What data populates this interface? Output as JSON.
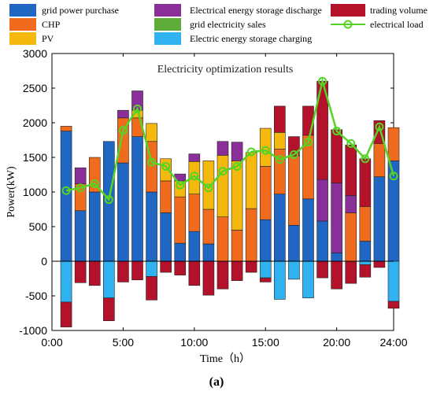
{
  "chart_data": {
    "type": "bar",
    "stacked": true,
    "title": "Electricity optimization results",
    "xlabel": "Time（h）",
    "ylabel": "Power(kW)",
    "ylim": [
      -1000,
      3000
    ],
    "xlim": [
      0,
      24
    ],
    "x_ticks": [
      "0:00",
      "5:00",
      "10:00",
      "15:00",
      "20:00",
      "24:00"
    ],
    "y_ticks": [
      "-1000",
      "-500",
      "0",
      "500",
      "1000",
      "1500",
      "2000",
      "2500",
      "3000"
    ],
    "caption": "(a)",
    "legend_placement": "top",
    "x": [
      1,
      2,
      3,
      4,
      5,
      6,
      7,
      8,
      9,
      10,
      11,
      12,
      13,
      14,
      15,
      16,
      17,
      18,
      19,
      20,
      21,
      22,
      23,
      24
    ],
    "series": [
      {
        "name": "grid power purchase",
        "color": "#1f67c2",
        "kind": "bar",
        "values": [
          1880,
          730,
          1000,
          1730,
          1420,
          1800,
          1000,
          700,
          260,
          430,
          250,
          0,
          0,
          0,
          600,
          970,
          520,
          900,
          580,
          120,
          0,
          290,
          1220,
          1450
        ]
      },
      {
        "name": "CHP",
        "color": "#f06b1d",
        "kind": "bar",
        "values": [
          70,
          390,
          500,
          0,
          650,
          270,
          730,
          460,
          670,
          540,
          500,
          640,
          450,
          760,
          770,
          650,
          1000,
          920,
          0,
          0,
          700,
          500,
          480,
          480
        ]
      },
      {
        "name": "PV",
        "color": "#f5b80e",
        "kind": "bar",
        "values": [
          0,
          0,
          0,
          0,
          0,
          110,
          260,
          320,
          230,
          470,
          700,
          890,
          1000,
          810,
          550,
          240,
          0,
          0,
          0,
          0,
          0,
          0,
          0,
          0
        ]
      },
      {
        "name": "Electrical energy storage discharge",
        "color": "#8a2f9a",
        "kind": "bar",
        "values": [
          0,
          230,
          0,
          0,
          110,
          280,
          0,
          0,
          100,
          110,
          0,
          200,
          270,
          0,
          0,
          0,
          0,
          0,
          600,
          1010,
          250,
          0,
          0,
          0
        ]
      },
      {
        "name": "grid electricity sales",
        "color": "#5eab3a",
        "kind": "bar",
        "values": [
          0,
          0,
          0,
          0,
          0,
          0,
          0,
          0,
          0,
          0,
          0,
          0,
          0,
          0,
          0,
          0,
          0,
          0,
          0,
          0,
          0,
          0,
          0,
          0
        ]
      },
      {
        "name": "Electric energy storage charging",
        "color": "#2fb2ef",
        "kind": "bar",
        "values": [
          -590,
          0,
          0,
          -530,
          0,
          0,
          -220,
          0,
          0,
          0,
          0,
          0,
          0,
          0,
          -240,
          -550,
          -260,
          -530,
          0,
          0,
          0,
          -50,
          0,
          -580
        ]
      },
      {
        "name": "trading volume",
        "color": "#b3122a",
        "kind": "bar",
        "values": [
          -360,
          -310,
          -350,
          -330,
          -300,
          -270,
          -340,
          -160,
          -200,
          -350,
          -490,
          -400,
          -280,
          -160,
          -60,
          0,
          0,
          0,
          -240,
          -400,
          -320,
          -180,
          -90,
          -100
        ]
      },
      {
        "name": "trading volume",
        "color": "#b3122a",
        "kind": "bar",
        "values": [
          0,
          0,
          0,
          0,
          0,
          0,
          0,
          0,
          0,
          0,
          0,
          0,
          0,
          0,
          0,
          380,
          280,
          420,
          1420,
          770,
          730,
          690,
          330,
          0
        ]
      },
      {
        "name": "electrical load",
        "color": "#55d425",
        "kind": "line",
        "values": [
          1020,
          1060,
          1120,
          890,
          1890,
          2200,
          1430,
          1370,
          1100,
          1230,
          1060,
          1300,
          1370,
          1580,
          1600,
          1470,
          1540,
          1720,
          2600,
          1880,
          1700,
          1480,
          1940,
          1230
        ]
      }
    ]
  }
}
